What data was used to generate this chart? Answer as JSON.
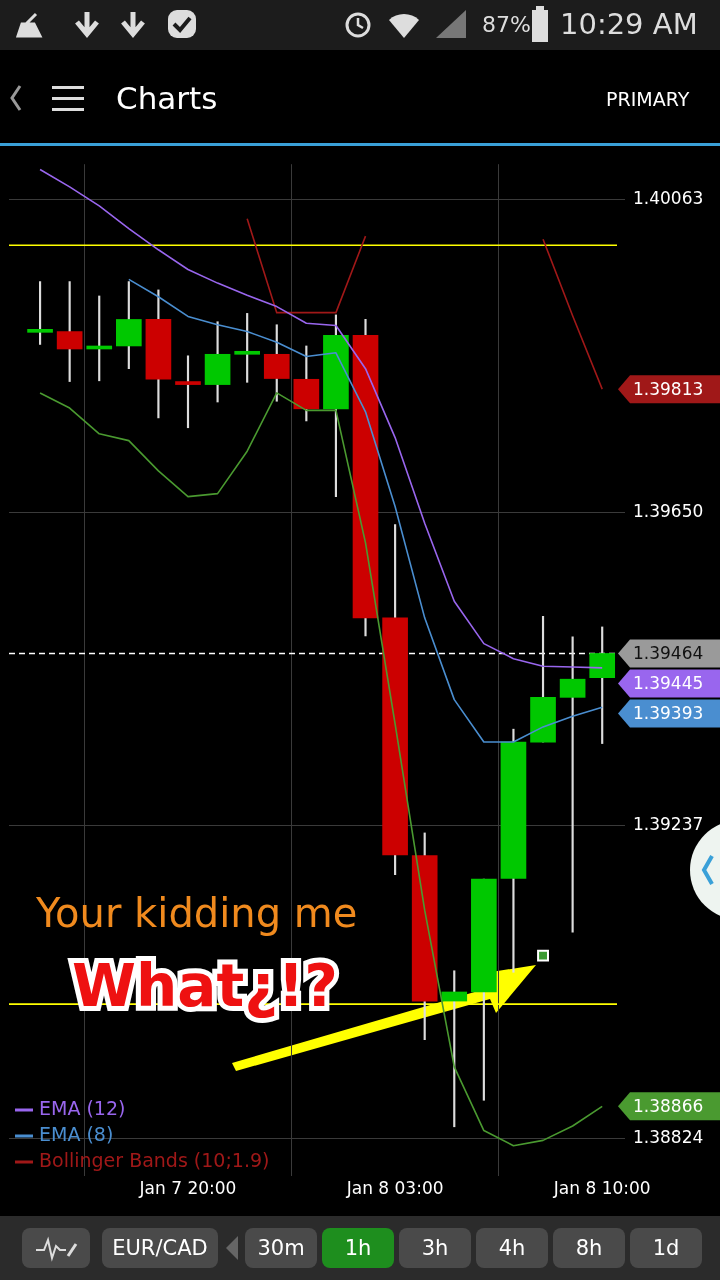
{
  "chart_data": {
    "type": "candlestick",
    "title": "Charts",
    "categories": [
      null,
      null,
      null,
      null,
      null,
      "Jan 7 20:00",
      null,
      null,
      null,
      null,
      null,
      null,
      "Jan 8 03:00",
      null,
      null,
      null,
      null,
      null,
      null,
      "Jan 8 10:00"
    ],
    "ylim": [
      1.38774,
      1.4011
    ],
    "yticks": [
      {
        "value": 1.38824,
        "label": "1.38824"
      },
      {
        "value": 1.39237,
        "label": "1.39237"
      },
      {
        "value": 1.3965,
        "label": "1.39650"
      },
      {
        "value": 1.40063,
        "label": "1.40063"
      }
    ],
    "grid": true,
    "legend": "bottom left",
    "series": [
      {
        "ohlc": [
          [
            1.39888,
            1.39955,
            1.39872,
            1.39889
          ],
          [
            1.39889,
            1.39955,
            1.39823,
            1.39866
          ],
          [
            1.39866,
            1.39936,
            1.39824,
            1.39868
          ],
          [
            1.3987,
            1.39955,
            1.3984,
            1.39905
          ],
          [
            1.39905,
            1.39944,
            1.39775,
            1.39826
          ],
          [
            1.39823,
            1.39857,
            1.39762,
            1.39819
          ],
          [
            1.39819,
            1.39902,
            1.39796,
            1.39859
          ],
          [
            1.39859,
            1.39913,
            1.39822,
            1.39861
          ],
          [
            1.39859,
            1.39898,
            1.39797,
            1.39827
          ],
          [
            1.39826,
            1.3987,
            1.39771,
            1.39787
          ],
          [
            1.39787,
            1.39911,
            1.39671,
            1.39884
          ],
          [
            1.39884,
            1.39905,
            1.39487,
            1.39511
          ],
          [
            1.39511,
            1.39634,
            1.39172,
            1.39198
          ],
          [
            1.39197,
            1.39227,
            1.38954,
            1.39005
          ],
          [
            1.39005,
            1.39045,
            1.38839,
            1.39017
          ],
          [
            1.39017,
            1.39166,
            1.38874,
            1.39166
          ],
          [
            1.39167,
            1.39364,
            1.39043,
            1.39347
          ],
          [
            1.39347,
            1.39513,
            1.39347,
            1.39406
          ],
          [
            1.39406,
            1.39486,
            1.39096,
            1.3943
          ],
          [
            1.39432,
            1.39499,
            1.39345,
            1.39464
          ]
        ],
        "colors": [
          "#00c800",
          "#cc0000",
          "#00c800",
          "#00c800",
          "#cc0000",
          "#cc0000",
          "#00c800",
          "#00c800",
          "#cc0000",
          "#cc0000",
          "#00c800",
          "#cc0000",
          "#cc0000",
          "#cc0000",
          "#00c800",
          "#00c800",
          "#00c800",
          "#00c800",
          "#00c800",
          "#00c800"
        ]
      },
      {
        "type": "line",
        "name": "EMA (12)",
        "color": "#9966ee",
        "values": [
          1.40103,
          1.4008,
          1.40055,
          1.40025,
          1.39997,
          1.39971,
          1.39953,
          1.39937,
          1.39922,
          1.399,
          1.39897,
          1.3984,
          1.39749,
          1.39636,
          1.39533,
          1.39477,
          1.39457,
          1.39447,
          1.39446,
          1.39445
        ],
        "value_labels": [
          null,
          null,
          null,
          null,
          null,
          null,
          null,
          null,
          null,
          null,
          null,
          null,
          null,
          null,
          null,
          null,
          null,
          null,
          null,
          "1.39445"
        ]
      },
      {
        "type": "line",
        "name": "EMA (8)",
        "color": "#4a8ed0",
        "values": [
          null,
          null,
          null,
          1.39958,
          1.39935,
          1.39909,
          1.39898,
          1.39889,
          1.39875,
          1.39856,
          1.39861,
          1.39783,
          1.39658,
          1.39511,
          1.39403,
          1.39347,
          1.39347,
          1.39367,
          1.39381,
          1.39393
        ],
        "value_labels": [
          null,
          null,
          null,
          null,
          null,
          null,
          null,
          null,
          null,
          null,
          null,
          null,
          null,
          null,
          null,
          null,
          null,
          null,
          null,
          "1.39393"
        ]
      },
      {
        "type": "line",
        "name": "Bollinger Bands (10;1.9)",
        "color": "#a01818",
        "values": [
          null,
          null,
          null,
          null,
          null,
          null,
          null,
          1.40038,
          1.39914,
          1.39914,
          1.39914,
          1.40015,
          null,
          null,
          null,
          null,
          null,
          1.40011,
          1.3991,
          1.39813
        ],
        "value_labels": [
          null,
          null,
          null,
          null,
          null,
          null,
          null,
          null,
          null,
          null,
          null,
          null,
          null,
          null,
          null,
          null,
          null,
          null,
          null,
          "1.39813"
        ]
      },
      {
        "type": "line",
        "color": "#4a9a30",
        "values": [
          1.39808,
          1.39788,
          1.39754,
          1.39745,
          1.39705,
          1.39671,
          1.39675,
          1.39731,
          1.39808,
          1.39785,
          1.39785,
          1.3961,
          1.39371,
          1.39125,
          1.38918,
          1.38834,
          1.38814,
          1.38821,
          1.3884,
          1.38866
        ],
        "value_labels": [
          null,
          null,
          null,
          null,
          null,
          null,
          null,
          null,
          null,
          null,
          null,
          null,
          null,
          null,
          null,
          null,
          null,
          null,
          null,
          "1.38866"
        ]
      },
      {
        "type": "scatter",
        "color": "#3a9a30",
        "marker": "square",
        "values": [
          null,
          null,
          null,
          null,
          null,
          null,
          null,
          null,
          null,
          null,
          null,
          null,
          null,
          null,
          null,
          null,
          null,
          1.39065,
          null,
          null
        ]
      }
    ],
    "ref_lines": [
      {
        "axis": "y",
        "value": 1.40003,
        "color": "#ffff00"
      },
      {
        "axis": "y",
        "value": 1.39001,
        "color": "#ffff00"
      },
      {
        "axis": "y",
        "value": 1.39464,
        "label": "1.39464",
        "color": "#ffffff",
        "line_style": "dashed"
      }
    ],
    "annotations": [
      "Your kidding me",
      "What¿!?",
      "PRIMARY",
      "EUR/CAD",
      "30m",
      "1h",
      "3h",
      "4h",
      "8h",
      "1d",
      "87%",
      "10:29 AM"
    ]
  }
}
